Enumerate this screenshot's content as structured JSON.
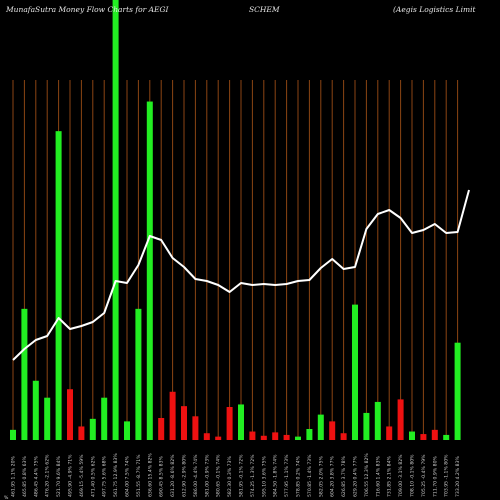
{
  "header": {
    "left": "MunafaSutra  Money Flow  Charts for AEGI",
    "center": "SCHEM",
    "right": "(Aegis Logistics Limit"
  },
  "colors": {
    "background": "#000000",
    "grid": "#8B4513",
    "up": "#22ee22",
    "down": "#ee1111",
    "line": "#ffffff"
  },
  "chart_data": {
    "type": "bar",
    "x_labels": [
      "461.95 1.1% 20%",
      "465.85 0.8% 63%",
      "486.45 4.4% 75%",
      "476.20 -2.1% 62%",
      "521.70 9.6% 84%",
      "495.90 -4.9% 71%",
      "469.15 -5.4% 59%",
      "471.40 0.5% 62%",
      "497.75 5.6% 68%",
      "561.75 12.9% 83%",
      "604.00 7.5% 74%",
      "551.55 -8.7% 71%",
      "636.60 15.4% 82%",
      "690.45 8.5% 83%",
      "631.20 -8.6% 82%",
      "612.90 -2.9% 80%",
      "586.00 -4.4% 74%",
      "581.00 -0.9% 73%",
      "580.65 -0.1% 74%",
      "582.30 0.3% 73%",
      "581.95 -0.1% 72%",
      "574.25 -1.3% 72%",
      "595.10 3.6% 75%",
      "584.50 -1.8% 74%",
      "577.95 -1.1% 73%",
      "578.85 0.2% 74%",
      "570.85 -1.4% 73%",
      "582.05 2.0% 75%",
      "604.20 3.8% 77%",
      "626.85 3.7% 78%",
      "629.20 0.4% 77%",
      "706.55 12.3% 82%",
      "716.60 1.4% 83%",
      "731.85 2.1% 84%",
      "709.00 -3.1% 82%",
      "708.10 -0.1% 80%",
      "705.25 -0.4% 79%",
      "711.70 0.9% 80%",
      "703.95 -1.1% 80%",
      "733.20 4.2% 83%"
    ],
    "bars": [
      {
        "v": 12,
        "c": "up"
      },
      {
        "v": 155,
        "c": "up"
      },
      {
        "v": 70,
        "c": "up"
      },
      {
        "v": 50,
        "c": "up"
      },
      {
        "v": 365,
        "c": "up"
      },
      {
        "v": 60,
        "c": "down"
      },
      {
        "v": 16,
        "c": "down"
      },
      {
        "v": 25,
        "c": "up"
      },
      {
        "v": 50,
        "c": "up"
      },
      {
        "v": 520,
        "c": "up"
      },
      {
        "v": 22,
        "c": "up"
      },
      {
        "v": 155,
        "c": "up"
      },
      {
        "v": 400,
        "c": "up"
      },
      {
        "v": 26,
        "c": "down"
      },
      {
        "v": 57,
        "c": "down"
      },
      {
        "v": 40,
        "c": "down"
      },
      {
        "v": 28,
        "c": "down"
      },
      {
        "v": 8,
        "c": "down"
      },
      {
        "v": 4,
        "c": "down"
      },
      {
        "v": 39,
        "c": "down"
      },
      {
        "v": 42,
        "c": "up"
      },
      {
        "v": 10,
        "c": "down"
      },
      {
        "v": 5,
        "c": "down"
      },
      {
        "v": 9,
        "c": "down"
      },
      {
        "v": 6,
        "c": "down"
      },
      {
        "v": 4,
        "c": "up"
      },
      {
        "v": 13,
        "c": "up"
      },
      {
        "v": 30,
        "c": "up"
      },
      {
        "v": 22,
        "c": "down"
      },
      {
        "v": 8,
        "c": "down"
      },
      {
        "v": 160,
        "c": "up"
      },
      {
        "v": 32,
        "c": "up"
      },
      {
        "v": 45,
        "c": "up"
      },
      {
        "v": 16,
        "c": "down"
      },
      {
        "v": 48,
        "c": "down"
      },
      {
        "v": 10,
        "c": "up"
      },
      {
        "v": 7,
        "c": "down"
      },
      {
        "v": 12,
        "c": "down"
      },
      {
        "v": 6,
        "c": "up"
      },
      {
        "v": 115,
        "c": "up"
      }
    ],
    "line": [
      461.95,
      465.85,
      486.45,
      476.2,
      521.7,
      495.9,
      469.15,
      471.4,
      497.75,
      561.75,
      604.0,
      551.55,
      636.6,
      690.45,
      631.2,
      612.9,
      586.0,
      581.0,
      580.65,
      582.3,
      581.95,
      574.25,
      595.1,
      584.5,
      577.95,
      578.85,
      570.85,
      582.05,
      604.2,
      626.85,
      629.2,
      706.55,
      716.6,
      731.85,
      709.0,
      708.1,
      705.25,
      711.7,
      703.95,
      733.2
    ],
    "line_points": [
      {
        "x": 0,
        "y": 360
      },
      {
        "x": 1,
        "y": 349
      },
      {
        "x": 2,
        "y": 340
      },
      {
        "x": 3,
        "y": 336
      },
      {
        "x": 4,
        "y": 318
      },
      {
        "x": 5,
        "y": 329
      },
      {
        "x": 6,
        "y": 326
      },
      {
        "x": 7,
        "y": 322
      },
      {
        "x": 8,
        "y": 313
      },
      {
        "x": 9,
        "y": 281
      },
      {
        "x": 10,
        "y": 283
      },
      {
        "x": 11,
        "y": 265
      },
      {
        "x": 12,
        "y": 236
      },
      {
        "x": 13,
        "y": 240
      },
      {
        "x": 14,
        "y": 258
      },
      {
        "x": 15,
        "y": 267
      },
      {
        "x": 16,
        "y": 279
      },
      {
        "x": 17,
        "y": 281
      },
      {
        "x": 18,
        "y": 285
      },
      {
        "x": 19,
        "y": 292
      },
      {
        "x": 20,
        "y": 283
      },
      {
        "x": 21,
        "y": 285
      },
      {
        "x": 22,
        "y": 284
      },
      {
        "x": 23,
        "y": 285
      },
      {
        "x": 24,
        "y": 284
      },
      {
        "x": 25,
        "y": 281
      },
      {
        "x": 26,
        "y": 280
      },
      {
        "x": 27,
        "y": 268
      },
      {
        "x": 28,
        "y": 259
      },
      {
        "x": 29,
        "y": 269
      },
      {
        "x": 30,
        "y": 267
      },
      {
        "x": 31,
        "y": 229
      },
      {
        "x": 32,
        "y": 214
      },
      {
        "x": 33,
        "y": 210
      },
      {
        "x": 34,
        "y": 218
      },
      {
        "x": 35,
        "y": 233
      },
      {
        "x": 36,
        "y": 230
      },
      {
        "x": 37,
        "y": 224
      },
      {
        "x": 38,
        "y": 233
      },
      {
        "x": 39,
        "y": 232
      },
      {
        "x": 40,
        "y": 190
      }
    ],
    "extra_label": "%"
  }
}
